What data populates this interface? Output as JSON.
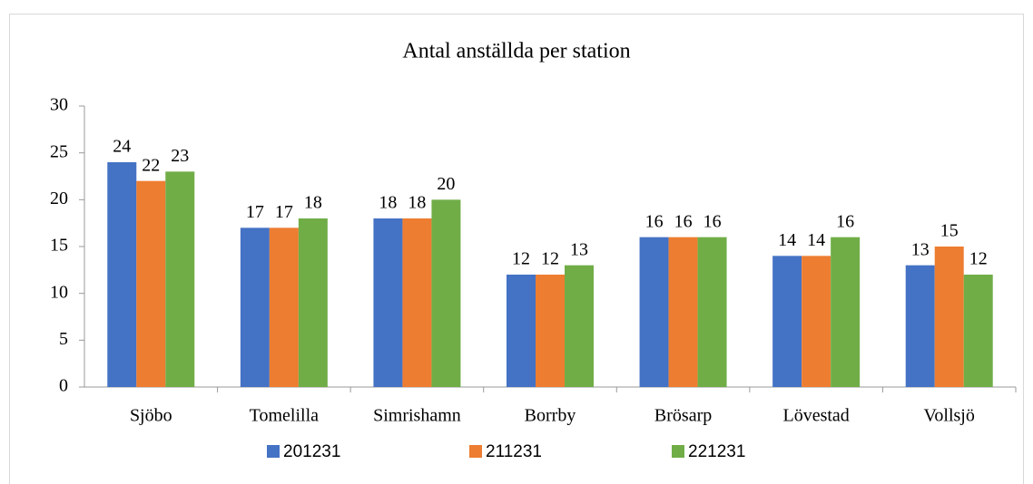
{
  "chart_data": {
    "type": "bar",
    "title": "Antal anställda per station",
    "categories": [
      "Sjöbo",
      "Tomelilla",
      "Simrishamn",
      "Borrby",
      "Brösarp",
      "Lövestad",
      "Vollsjö"
    ],
    "series": [
      {
        "name": "201231",
        "color": "#4472c4",
        "values": [
          24,
          17,
          18,
          12,
          16,
          14,
          13
        ]
      },
      {
        "name": "211231",
        "color": "#ed7d31",
        "values": [
          22,
          17,
          18,
          12,
          16,
          14,
          15
        ]
      },
      {
        "name": "221231",
        "color": "#70ad47",
        "values": [
          23,
          18,
          20,
          13,
          16,
          16,
          12
        ]
      }
    ],
    "ylim": [
      0,
      30
    ],
    "yticks": [
      0,
      5,
      10,
      15,
      20,
      25,
      30
    ],
    "legend": "bottom"
  }
}
